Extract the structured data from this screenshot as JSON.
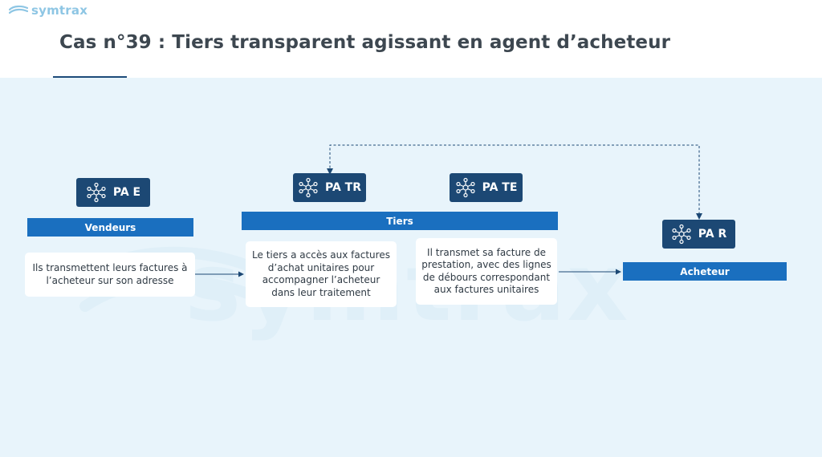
{
  "brand": {
    "name": "symtrax",
    "logo_icon": "symtrax-swoosh-icon"
  },
  "title": "Cas n°39 : Tiers transparent agissant en agent d’acheteur",
  "watermark": "symtrax",
  "platforms": {
    "pae": {
      "label": "PA E",
      "icon": "network-nodes-icon"
    },
    "patr": {
      "label": "PA TR",
      "icon": "network-nodes-icon"
    },
    "pate": {
      "label": "PA TE",
      "icon": "network-nodes-icon"
    },
    "par": {
      "label": "PA R",
      "icon": "network-nodes-icon"
    }
  },
  "actors": {
    "vendeurs": "Vendeurs",
    "tiers": "Tiers",
    "acheteur": "Acheteur"
  },
  "cards": {
    "vendeurs_text": "Ils transmettent leurs factures à l’acheteur sur son adresse",
    "tiers_acces_text": "Le tiers a accès aux factures d’achat unitaires pour accompagner l’acheteur dans leur traitement",
    "tiers_transmet_text": "Il transmet sa facture de prestation, avec des lignes de débours correspondant aux factures unitaires"
  },
  "colors": {
    "title": "#3d4750",
    "badge": "#1c4874",
    "banner": "#1a6fbf",
    "canvas": "#e8f4fb",
    "arrow": "#1c4874"
  }
}
